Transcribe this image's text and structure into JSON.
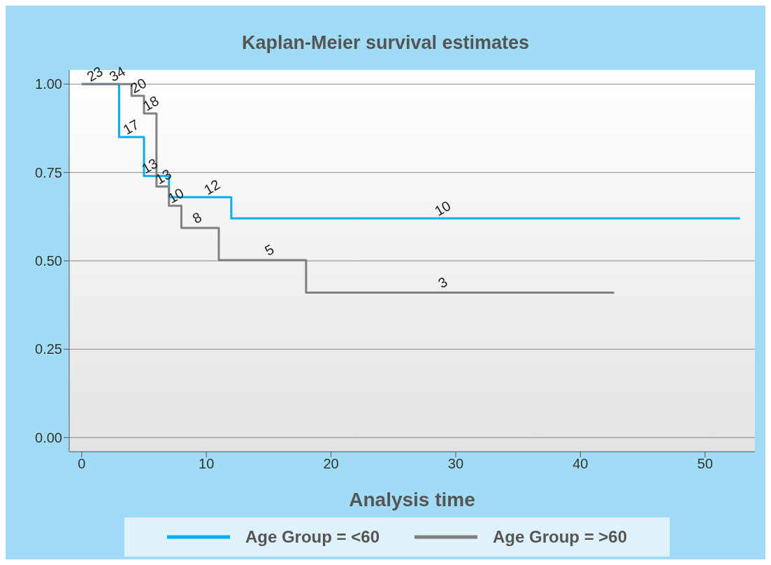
{
  "chart_data": {
    "type": "step",
    "title": "Kaplan-Meier survival estimates",
    "xlabel": "Analysis time",
    "series": [
      {
        "name": "Age Group = <60",
        "color": "#00aeef",
        "x": [
          0,
          3,
          5,
          7,
          12,
          52.8
        ],
        "values": [
          1,
          0.85,
          0.74,
          0.68,
          0.62,
          0.62
        ]
      },
      {
        "name": "Age Group = >60",
        "color": "#808080",
        "x": [
          0,
          4,
          5,
          6,
          7,
          8,
          11,
          18,
          42.7
        ],
        "values": [
          1,
          0.967,
          0.917,
          0.71,
          0.656,
          0.593,
          0.502,
          0.41,
          0.41
        ]
      }
    ],
    "xlim": [
      -1,
      54
    ],
    "xticks": [
      0,
      10,
      20,
      30,
      40,
      50
    ],
    "ylim": [
      -0.04,
      1.04
    ],
    "yticks": [
      {
        "value": 0,
        "label": "0.00"
      },
      {
        "value": 0.25,
        "label": "0.25"
      },
      {
        "value": 0.5,
        "label": "0.50"
      },
      {
        "value": 0.75,
        "label": "0.75"
      },
      {
        "value": 1,
        "label": "1.00"
      }
    ],
    "grid": "y",
    "legend": "bottom",
    "marker": "none",
    "line_style": "solid",
    "annotations": [
      {
        "text": "23",
        "x": 1.1,
        "y": 1
      },
      {
        "text": "34",
        "x": 2.9,
        "y": 1
      },
      {
        "text": "20",
        "x": 4.6,
        "y": 0.967
      },
      {
        "text": "18",
        "x": 5.6,
        "y": 0.917
      },
      {
        "text": "17",
        "x": 4.0,
        "y": 0.85
      },
      {
        "text": "13",
        "x": 5.5,
        "y": 0.74
      },
      {
        "text": "13",
        "x": 6.6,
        "y": 0.71
      },
      {
        "text": "10",
        "x": 7.6,
        "y": 0.656
      },
      {
        "text": "12",
        "x": 10.5,
        "y": 0.68
      },
      {
        "text": "8",
        "x": 9.3,
        "y": 0.593
      },
      {
        "text": "10",
        "x": 29,
        "y": 0.62
      },
      {
        "text": "5",
        "x": 15.1,
        "y": 0.502
      },
      {
        "text": "3",
        "x": 29,
        "y": 0.41
      }
    ]
  }
}
